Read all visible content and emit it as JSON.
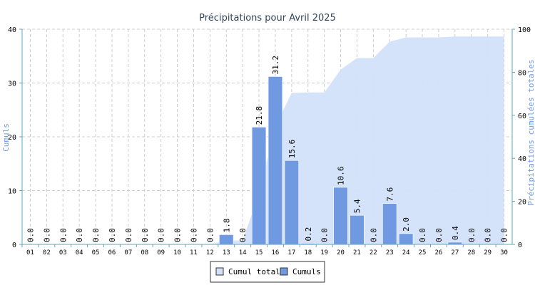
{
  "chart_data": {
    "type": "bar",
    "title": "Précipitations pour Avril 2025",
    "ylabel": "Cumuls",
    "ylabel_right": "Précipitations cumulées totales",
    "ylim": [
      0,
      40
    ],
    "ylim_right": [
      0,
      100
    ],
    "yticks": [
      "0",
      "10",
      "20",
      "30",
      "40"
    ],
    "yticks_right": [
      "0",
      "20",
      "40",
      "60",
      "80",
      "100"
    ],
    "grid": true,
    "legend_position": "bottom-center",
    "categories": [
      "01",
      "02",
      "03",
      "04",
      "05",
      "06",
      "07",
      "08",
      "09",
      "10",
      "11",
      "12",
      "13",
      "14",
      "15",
      "16",
      "17",
      "18",
      "19",
      "20",
      "21",
      "22",
      "23",
      "24",
      "25",
      "26",
      "27",
      "28",
      "29",
      "30"
    ],
    "series": [
      {
        "name": "Cumuls",
        "axis": "left",
        "kind": "bar",
        "color": "#6f99e0",
        "values": [
          0.0,
          0.0,
          0.0,
          0.0,
          0.0,
          0.0,
          0.0,
          0.0,
          0.0,
          0.0,
          0.0,
          0.0,
          1.8,
          0.0,
          21.8,
          31.2,
          15.6,
          0.2,
          0.0,
          10.6,
          5.4,
          0.0,
          7.6,
          2.0,
          0.0,
          0.0,
          0.4,
          0.0,
          0.0,
          0.0
        ],
        "labels": [
          "0.0",
          "0.0",
          "0.0",
          "0.0",
          "0.0",
          "0.0",
          "0.0",
          "0.0",
          "0.0",
          "0.0",
          "0.0",
          "0.0",
          "1.8",
          "0.0",
          "21.8",
          "31.2",
          "15.6",
          "0.2",
          "0.0",
          "10.6",
          "5.4",
          "0.0",
          "7.6",
          "2.0",
          "0.0",
          "0.0",
          "0.4",
          "0.0",
          "0.0",
          "0.0"
        ]
      },
      {
        "name": "Cumul total",
        "axis": "right",
        "kind": "area",
        "color": "#d3e1fa",
        "values": [
          0,
          0,
          0,
          0,
          0,
          0,
          0,
          0,
          0,
          0,
          0,
          0,
          1.8,
          1.8,
          23.6,
          54.8,
          70.4,
          70.6,
          70.6,
          81.2,
          86.6,
          86.6,
          94.2,
          96.2,
          96.2,
          96.2,
          96.6,
          96.6,
          96.6,
          96.6
        ]
      }
    ],
    "colors": {
      "axis": "#5ba7b8",
      "grid": "#cccccc",
      "title": "#33445a",
      "ylabel": "#6f99e0"
    }
  }
}
